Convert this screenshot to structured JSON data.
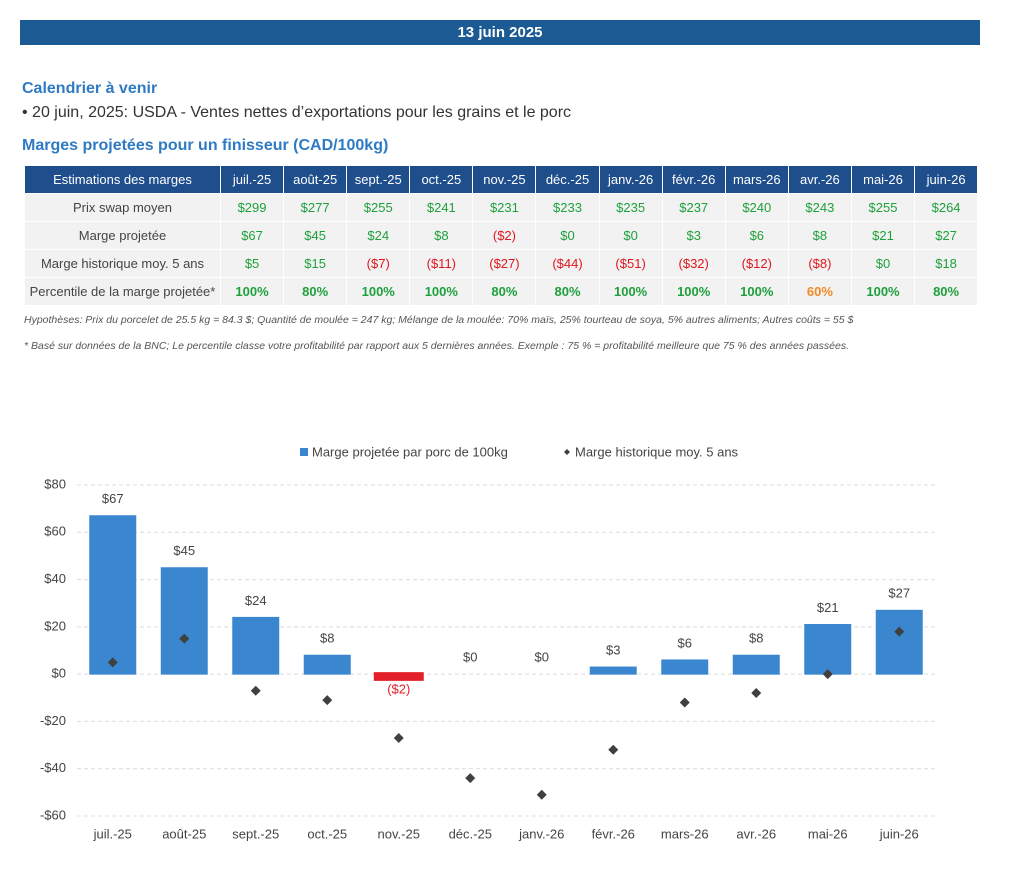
{
  "header": {
    "title": "13 juin 2025"
  },
  "calendar": {
    "title": "Calendrier à venir",
    "items": [
      "20 juin, 2025: USDA - Ventes nettes d’exportations pour les grains et le porc"
    ]
  },
  "table": {
    "title": "Marges projetées pour un finisseur (CAD/100kg)",
    "header": [
      "Estimations des marges",
      "juil.-25",
      "août-25",
      "sept.-25",
      "oct.-25",
      "nov.-25",
      "déc.-25",
      "janv.-26",
      "févr.-26",
      "mars-26",
      "avr.-26",
      "mai-26",
      "juin-26"
    ],
    "rows": [
      {
        "label": "Prix swap moyen",
        "values": [
          "$299",
          "$277",
          "$255",
          "$241",
          "$231",
          "$233",
          "$235",
          "$237",
          "$240",
          "$243",
          "$255",
          "$264"
        ],
        "colors": [
          "#1ea03c",
          "#1ea03c",
          "#1ea03c",
          "#1ea03c",
          "#1ea03c",
          "#1ea03c",
          "#1ea03c",
          "#1ea03c",
          "#1ea03c",
          "#1ea03c",
          "#1ea03c",
          "#1ea03c"
        ]
      },
      {
        "label": "Marge projetée",
        "values": [
          "$67",
          "$45",
          "$24",
          "$8",
          "($2)",
          "$0",
          "$0",
          "$3",
          "$6",
          "$8",
          "$21",
          "$27"
        ],
        "colors": [
          "#1ea03c",
          "#1ea03c",
          "#1ea03c",
          "#1ea03c",
          "#e0161e",
          "#1ea03c",
          "#1ea03c",
          "#1ea03c",
          "#1ea03c",
          "#1ea03c",
          "#1ea03c",
          "#1ea03c"
        ]
      },
      {
        "label": "Marge historique moy. 5 ans",
        "values": [
          "$5",
          "$15",
          "($7)",
          "($11)",
          "($27)",
          "($44)",
          "($51)",
          "($32)",
          "($12)",
          "($8)",
          "$0",
          "$18"
        ],
        "colors": [
          "#1ea03c",
          "#1ea03c",
          "#e0161e",
          "#e0161e",
          "#e0161e",
          "#e0161e",
          "#e0161e",
          "#e0161e",
          "#e0161e",
          "#e0161e",
          "#1ea03c",
          "#1ea03c"
        ]
      },
      {
        "label": "Percentile de la marge projetée*",
        "values": [
          "100%",
          "80%",
          "100%",
          "100%",
          "80%",
          "80%",
          "100%",
          "100%",
          "100%",
          "60%",
          "100%",
          "80%"
        ],
        "colors": [
          "#1ea03c",
          "#1ea03c",
          "#1ea03c",
          "#1ea03c",
          "#1ea03c",
          "#1ea03c",
          "#1ea03c",
          "#1ea03c",
          "#1ea03c",
          "#f08a24",
          "#1ea03c",
          "#1ea03c"
        ],
        "bold": true
      }
    ]
  },
  "notes": [
    "Hypothèses: Prix du porcelet de 25.5 kg = 84.3 $; Quantité de moulée = 247 kg; Mélange de la moulée: 70% maïs, 25% tourteau de soya, 5% autres aliments; Autres coûts = 55 $",
    "* Basé sur données de la BNC; Le percentile classe votre profitabilité par rapport aux 5 dernières années. Exemple : 75 % = profitabilité meilleure que 75 % des années passées."
  ],
  "chart_data": {
    "type": "bar",
    "categories": [
      "juil.-25",
      "août-25",
      "sept.-25",
      "oct.-25",
      "nov.-25",
      "déc.-25",
      "janv.-26",
      "févr.-26",
      "mars-26",
      "avr.-26",
      "mai-26",
      "juin-26"
    ],
    "series": [
      {
        "name": "Marge projetée par porc de 100kg",
        "type": "bar",
        "color": "#3a87d0",
        "negative_color": "#e3202a",
        "values": [
          67,
          45,
          24,
          8,
          -2,
          0,
          0,
          3,
          6,
          8,
          21,
          27
        ],
        "value_labels": [
          "$67",
          "$45",
          "$24",
          "$8",
          "($2)",
          "$0",
          "$0",
          "$3",
          "$6",
          "$8",
          "$21",
          "$27"
        ]
      },
      {
        "name": "Marge historique moy. 5 ans",
        "type": "scatter",
        "color": "#404040",
        "values": [
          5,
          15,
          -7,
          -11,
          -27,
          -44,
          -51,
          -32,
          -12,
          -8,
          0,
          18
        ]
      }
    ],
    "ylim": [
      -60,
      80
    ],
    "yticks": [
      {
        "value": -60,
        "label": "-$60"
      },
      {
        "value": -40,
        "label": "-$40"
      },
      {
        "value": -20,
        "label": "-$20"
      },
      {
        "value": 0,
        "label": "$0"
      },
      {
        "value": 20,
        "label": "$20"
      },
      {
        "value": 40,
        "label": "$40"
      },
      {
        "value": 60,
        "label": "$60"
      },
      {
        "value": 80,
        "label": "$80"
      }
    ],
    "grid": true,
    "legend": "top"
  }
}
